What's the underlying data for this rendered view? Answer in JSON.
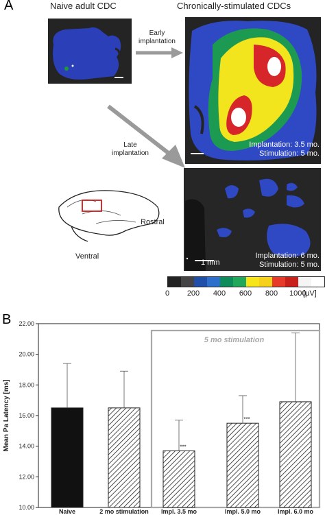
{
  "panel_a": {
    "letter": "A",
    "naive_title": "Naive adult CDC",
    "chronic_title": "Chronically-stimulated CDCs",
    "early_label": "Early implantation",
    "late_label": "Late implantation",
    "early_caption": [
      "Implantation: 3.5 mo.",
      "Stimulation: 5 mo."
    ],
    "late_caption": [
      "Implantation: 6 mo.",
      "Stimulation: 5 mo."
    ],
    "scale_bar_label": "1 mm",
    "brain_labels": {
      "rostral": "Rostral",
      "ventral": "Ventral"
    },
    "colorbar": {
      "ticks": [
        "0",
        "200",
        "400",
        "600",
        "800",
        "1000"
      ],
      "unit": "[µV]",
      "colors": [
        "#222222",
        "#444444",
        "#1f4fa8",
        "#2f6fcc",
        "#0e8c5a",
        "#21a85a",
        "#f6e51b",
        "#f6d11b",
        "#e63a2a",
        "#c8201a",
        "#f5f5f5",
        "#ffffff"
      ]
    }
  },
  "chart_data": {
    "panel_letter": "B",
    "type": "bar",
    "categories": [
      "Naive",
      "2 mo stimulation",
      "Impl. 3.5 mo",
      "Impl. 5.0 mo",
      "Impl. 6.0 mo"
    ],
    "values": [
      16.5,
      16.5,
      13.7,
      15.5,
      16.9
    ],
    "error_upper": [
      19.4,
      18.9,
      15.7,
      17.3,
      21.4
    ],
    "significance": [
      "",
      "",
      "***",
      "***",
      ""
    ],
    "fills": [
      "solid",
      "hatched",
      "hatched",
      "hatched",
      "hatched"
    ],
    "ylabel": "Mean Pa Latency [ms]",
    "ylim": [
      10.0,
      22.0
    ],
    "yticks": [
      "10.00",
      "12.00",
      "14.00",
      "16.00",
      "18.00",
      "20.00",
      "22.00"
    ],
    "group_box_label": "5 mo stimulation",
    "group_box_categories": [
      "Impl. 3.5 mo",
      "Impl. 5.0 mo",
      "Impl. 6.0 mo"
    ]
  }
}
